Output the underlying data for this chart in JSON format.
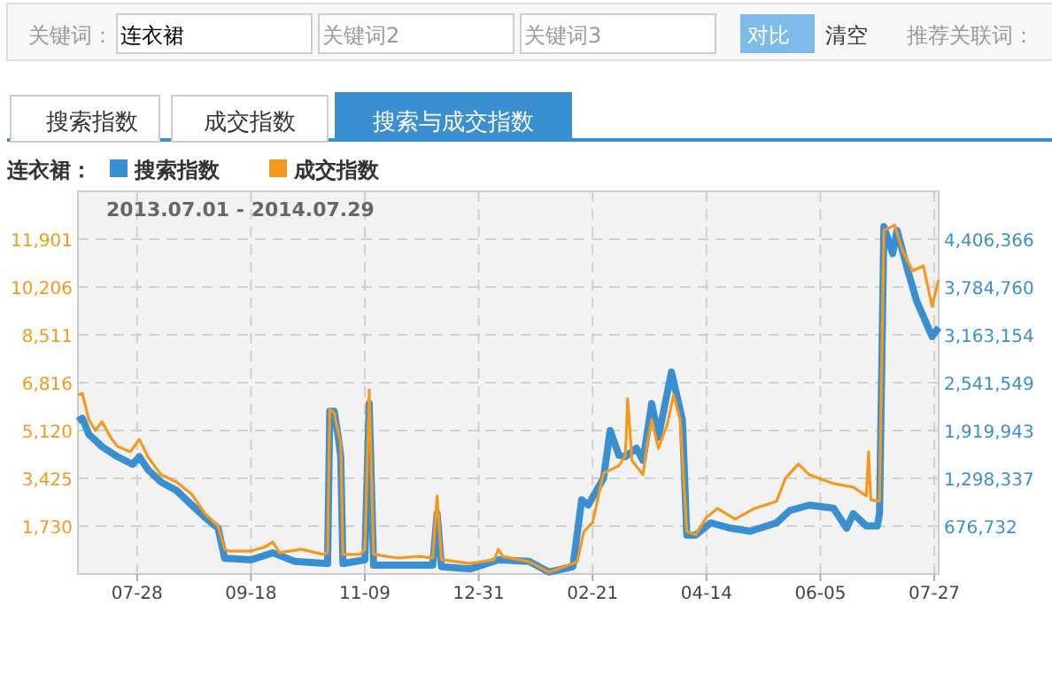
{
  "chart_data": {
    "type": "line",
    "title": "2013.07.01 - 2014.07.29",
    "legend_title": "连衣裙：",
    "legend": "top left",
    "grid": true,
    "annotations": [
      "关键词：",
      "连衣裙",
      "关键词2",
      "关键词3",
      "对比",
      "清空",
      "推荐关联词：",
      "搜索指数",
      "成交指数",
      "搜索与成交指数"
    ],
    "xlim": [
      "2013-07-01",
      "2014-07-29"
    ],
    "xticks": [
      {
        "value": "2013-07-28",
        "label": "07-28"
      },
      {
        "value": "2013-09-18",
        "label": "09-18"
      },
      {
        "value": "2013-11-09",
        "label": "11-09"
      },
      {
        "value": "2013-12-31",
        "label": "12-31"
      },
      {
        "value": "2014-02-21",
        "label": "02-21"
      },
      {
        "value": "2014-04-14",
        "label": "04-14"
      },
      {
        "value": "2014-06-05",
        "label": "06-05"
      },
      {
        "value": "2014-07-27",
        "label": "07-27"
      }
    ],
    "ylim": [
      35,
      13596
    ],
    "yticks": [
      {
        "value": 1730,
        "label": "1,730"
      },
      {
        "value": 3425,
        "label": "3,425"
      },
      {
        "value": 5120,
        "label": "5,120"
      },
      {
        "value": 6816,
        "label": "6,816"
      },
      {
        "value": 8511,
        "label": "8,511"
      },
      {
        "value": 10206,
        "label": "10,206"
      },
      {
        "value": 11901,
        "label": "11,901"
      }
    ],
    "y2lim": [
      55127,
      5027972
    ],
    "y2ticks": [
      {
        "value": 676732,
        "label": "676,732"
      },
      {
        "value": 1298337,
        "label": "1,298,337"
      },
      {
        "value": 1919943,
        "label": "1,919,943"
      },
      {
        "value": 2541549,
        "label": "2,541,549"
      },
      {
        "value": 3163154,
        "label": "3,163,154"
      },
      {
        "value": 3784760,
        "label": "3,784,760"
      },
      {
        "value": 4406366,
        "label": "4,406,366"
      }
    ],
    "series": [
      {
        "name": "搜索指数",
        "color": "#3a8fd0",
        "axis": "y2",
        "x": [
          "2013-07-01",
          "2013-07-03",
          "2013-07-06",
          "2013-07-12",
          "2013-07-19",
          "2013-07-26",
          "2013-07-29",
          "2013-08-02",
          "2013-08-08",
          "2013-08-15",
          "2013-08-22",
          "2013-08-28",
          "2013-09-03",
          "2013-09-06",
          "2013-09-18",
          "2013-09-28",
          "2013-10-08",
          "2013-10-23",
          "2013-10-24",
          "2013-10-26",
          "2013-10-28",
          "2013-10-29",
          "2013-10-30",
          "2013-11-09",
          "2013-11-11",
          "2013-11-13",
          "2013-12-01",
          "2013-12-10",
          "2013-12-12",
          "2013-12-14",
          "2013-12-27",
          "2014-01-09",
          "2014-01-23",
          "2014-02-01",
          "2014-02-12",
          "2014-02-16",
          "2014-02-19",
          "2014-02-26",
          "2014-03-01",
          "2014-03-05",
          "2014-03-08",
          "2014-03-13",
          "2014-03-16",
          "2014-03-20",
          "2014-03-23",
          "2014-03-29",
          "2014-04-03",
          "2014-04-05",
          "2014-04-09",
          "2014-04-16",
          "2014-04-25",
          "2014-05-04",
          "2014-05-16",
          "2014-05-22",
          "2014-05-31",
          "2014-06-11",
          "2014-06-17",
          "2014-06-20",
          "2014-06-26",
          "2014-07-01",
          "2014-07-02",
          "2014-07-04",
          "2014-07-08",
          "2014-07-10",
          "2014-07-15",
          "2014-07-19",
          "2014-07-26",
          "2014-07-29"
        ],
        "values": [
          2040000,
          2080000,
          1870000,
          1710000,
          1580000,
          1480000,
          1580000,
          1410000,
          1250000,
          1140000,
          950000,
          790000,
          650000,
          260000,
          240000,
          330000,
          220000,
          190000,
          2170000,
          2170000,
          1810000,
          1580000,
          190000,
          240000,
          2270000,
          170000,
          170000,
          170000,
          840000,
          150000,
          120000,
          240000,
          220000,
          80000,
          150000,
          1020000,
          950000,
          1300000,
          1920000,
          1600000,
          1580000,
          1690000,
          1530000,
          2270000,
          1830000,
          2680000,
          2060000,
          560000,
          560000,
          720000,
          650000,
          610000,
          720000,
          880000,
          950000,
          910000,
          650000,
          840000,
          680000,
          680000,
          840000,
          4570000,
          4220000,
          4520000,
          3990000,
          3600000,
          3140000,
          3260000
        ]
      },
      {
        "name": "成交指数",
        "color": "#f39a1e",
        "x": [
          "2013-07-01",
          "2013-07-03",
          "2013-07-06",
          "2013-07-09",
          "2013-07-12",
          "2013-07-16",
          "2013-07-19",
          "2013-07-25",
          "2013-07-29",
          "2013-08-02",
          "2013-08-08",
          "2013-08-15",
          "2013-08-22",
          "2013-08-28",
          "2013-09-03",
          "2013-09-06",
          "2013-09-08",
          "2013-09-18",
          "2013-09-24",
          "2013-09-28",
          "2013-10-01",
          "2013-10-11",
          "2013-10-21",
          "2013-10-23",
          "2013-10-24",
          "2013-10-26",
          "2013-10-28",
          "2013-10-29",
          "2013-10-30",
          "2013-11-07",
          "2013-11-09",
          "2013-11-11",
          "2013-11-13",
          "2013-11-24",
          "2013-12-04",
          "2013-12-10",
          "2013-12-12",
          "2013-12-14",
          "2013-12-27",
          "2014-01-07",
          "2014-01-09",
          "2014-01-11",
          "2014-01-23",
          "2014-02-01",
          "2014-02-08",
          "2014-02-14",
          "2014-02-17",
          "2014-02-21",
          "2014-02-26",
          "2014-03-05",
          "2014-03-08",
          "2014-03-09",
          "2014-03-11",
          "2014-03-16",
          "2014-03-18",
          "2014-03-20",
          "2014-03-23",
          "2014-03-27",
          "2014-03-30",
          "2014-04-02",
          "2014-04-05",
          "2014-04-09",
          "2014-04-14",
          "2014-04-19",
          "2014-04-27",
          "2014-05-06",
          "2014-05-16",
          "2014-05-20",
          "2014-05-26",
          "2014-05-31",
          "2014-06-11",
          "2014-06-20",
          "2014-06-26",
          "2014-06-27",
          "2014-06-28",
          "2014-07-02",
          "2014-07-04",
          "2014-07-09",
          "2014-07-12",
          "2014-07-17",
          "2014-07-22",
          "2014-07-26",
          "2014-07-29"
        ],
        "values": [
          6380,
          6440,
          5500,
          5120,
          5430,
          4870,
          4560,
          4370,
          4810,
          4180,
          3550,
          3300,
          2860,
          2170,
          1730,
          910,
          850,
          850,
          980,
          1170,
          790,
          910,
          730,
          790,
          5870,
          5750,
          5000,
          4680,
          730,
          730,
          910,
          6560,
          730,
          600,
          660,
          600,
          2800,
          540,
          410,
          540,
          910,
          660,
          470,
          100,
          290,
          470,
          1540,
          1860,
          3610,
          3870,
          4240,
          6250,
          4050,
          3550,
          4680,
          5500,
          4490,
          5310,
          6380,
          5500,
          1540,
          1420,
          2040,
          2360,
          1980,
          2360,
          2610,
          3430,
          3930,
          3550,
          3240,
          3110,
          2800,
          4370,
          2670,
          2610,
          12210,
          12400,
          11590,
          10770,
          10960,
          9520,
          10460
        ]
      }
    ]
  }
}
